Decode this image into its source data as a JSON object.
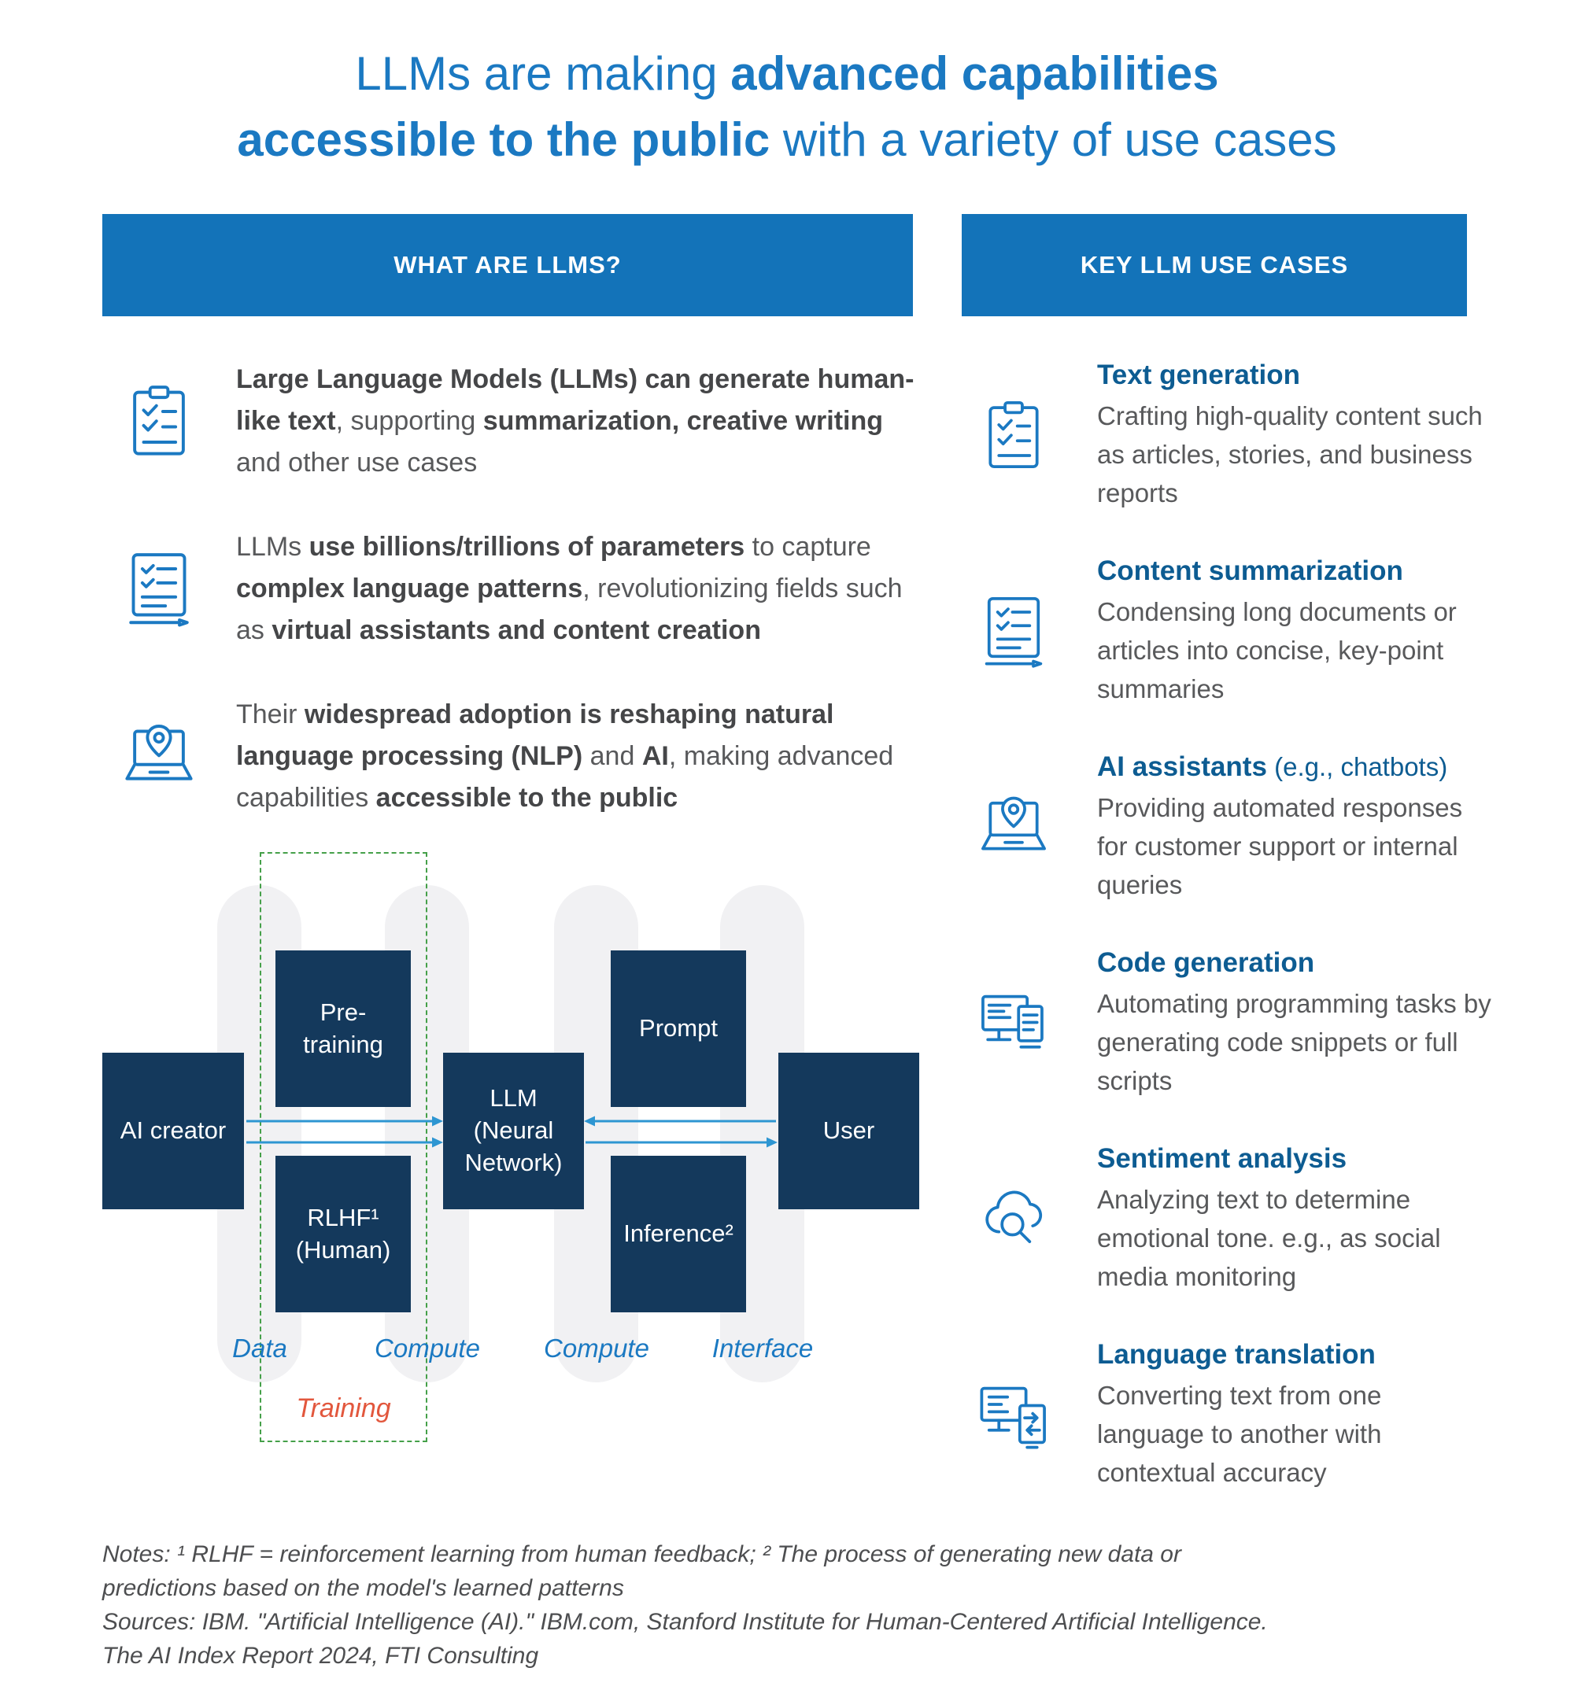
{
  "colors": {
    "title_blue": "#1b79c2",
    "bar_blue": "#1373b9",
    "usecase_blue": "#0d5c92",
    "icon_blue": "#1b79c2",
    "navy_box": "#14395c",
    "arrow_blue": "#2e96d2",
    "label_blue": "#1b79c2",
    "training_orange": "#e2573d",
    "dashed_green": "#45a049",
    "capsule_gray": "#f1f1f3",
    "body_gray": "#58595b"
  },
  "title": {
    "line1": [
      {
        "text": "LLMs are making ",
        "bold": false
      },
      {
        "text": "advanced capabilities",
        "bold": true
      }
    ],
    "line2": [
      {
        "text": "accessible to the public",
        "bold": true
      },
      {
        "text": " with a variety of use cases",
        "bold": false
      }
    ]
  },
  "left": {
    "header": "WHAT ARE LLMS?",
    "items": [
      {
        "icon": "clipboard-checklist",
        "segments": [
          {
            "text": "Large Language Models (LLMs) can generate human-like text",
            "bold": true
          },
          {
            "text": ", supporting ",
            "bold": false
          },
          {
            "text": "summarization, creative writing",
            "bold": true
          },
          {
            "text": " and other use cases",
            "bold": false
          }
        ]
      },
      {
        "icon": "tablet-checklist",
        "segments": [
          {
            "text": "LLMs ",
            "bold": false
          },
          {
            "text": "use billions/trillions of parameters",
            "bold": true
          },
          {
            "text": " to capture ",
            "bold": false
          },
          {
            "text": "complex language patterns",
            "bold": true
          },
          {
            "text": ", revolutionizing fields such as ",
            "bold": false
          },
          {
            "text": "virtual assistants and content creation",
            "bold": true
          }
        ]
      },
      {
        "icon": "laptop-location-pin",
        "segments": [
          {
            "text": "Their ",
            "bold": false
          },
          {
            "text": "widespread adoption is reshaping natural language processing (NLP)",
            "bold": true
          },
          {
            "text": " and ",
            "bold": false
          },
          {
            "text": "AI",
            "bold": true
          },
          {
            "text": ", making advanced capabilities ",
            "bold": false
          },
          {
            "text": "accessible to the public",
            "bold": true
          }
        ]
      }
    ]
  },
  "right": {
    "header": "KEY LLM USE CASES",
    "items": [
      {
        "icon": "clipboard-checklist",
        "title": "Text generation",
        "desc": "Crafting high-quality content such as articles, stories, and business reports"
      },
      {
        "icon": "tablet-checklist",
        "title": "Content summarization",
        "desc": "Condensing long documents or articles into concise, key-point summaries"
      },
      {
        "icon": "laptop-location-pin",
        "title": "AI assistants",
        "title_suffix": " (e.g., chatbots)",
        "desc": "Providing automated responses for customer support or internal queries"
      },
      {
        "icon": "code-screens",
        "title": "Code generation",
        "desc": "Automating programming tasks by generating code snippets or full scripts"
      },
      {
        "icon": "cloud-magnifier",
        "title": "Sentiment analysis",
        "desc": "Analyzing text to determine emotional tone. e.g., as social media monitoring"
      },
      {
        "icon": "translation-screens",
        "title": "Language translation",
        "desc": "Converting text from one language to another with contextual accuracy"
      }
    ]
  },
  "diagram": {
    "boxes": {
      "ai_creator": "AI creator",
      "pre_training": "Pre-training",
      "rlhf": "RLHF¹\n(Human)",
      "llm": "LLM (Neural\nNetwork)",
      "prompt": "Prompt",
      "inference": "Inference²",
      "user": "User"
    },
    "stage_labels": [
      "Data",
      "Compute",
      "Compute",
      "Interface"
    ],
    "training_label": "Training"
  },
  "footer": {
    "lines": [
      "Notes: ¹ RLHF = reinforcement learning from human feedback; ² The process of generating new data or",
      "predictions based on the model's learned patterns",
      "Sources: IBM. \"Artificial Intelligence (AI).\" IBM.com, Stanford Institute for Human-Centered Artificial Intelligence.",
      "The AI Index Report 2024, FTI Consulting"
    ]
  }
}
